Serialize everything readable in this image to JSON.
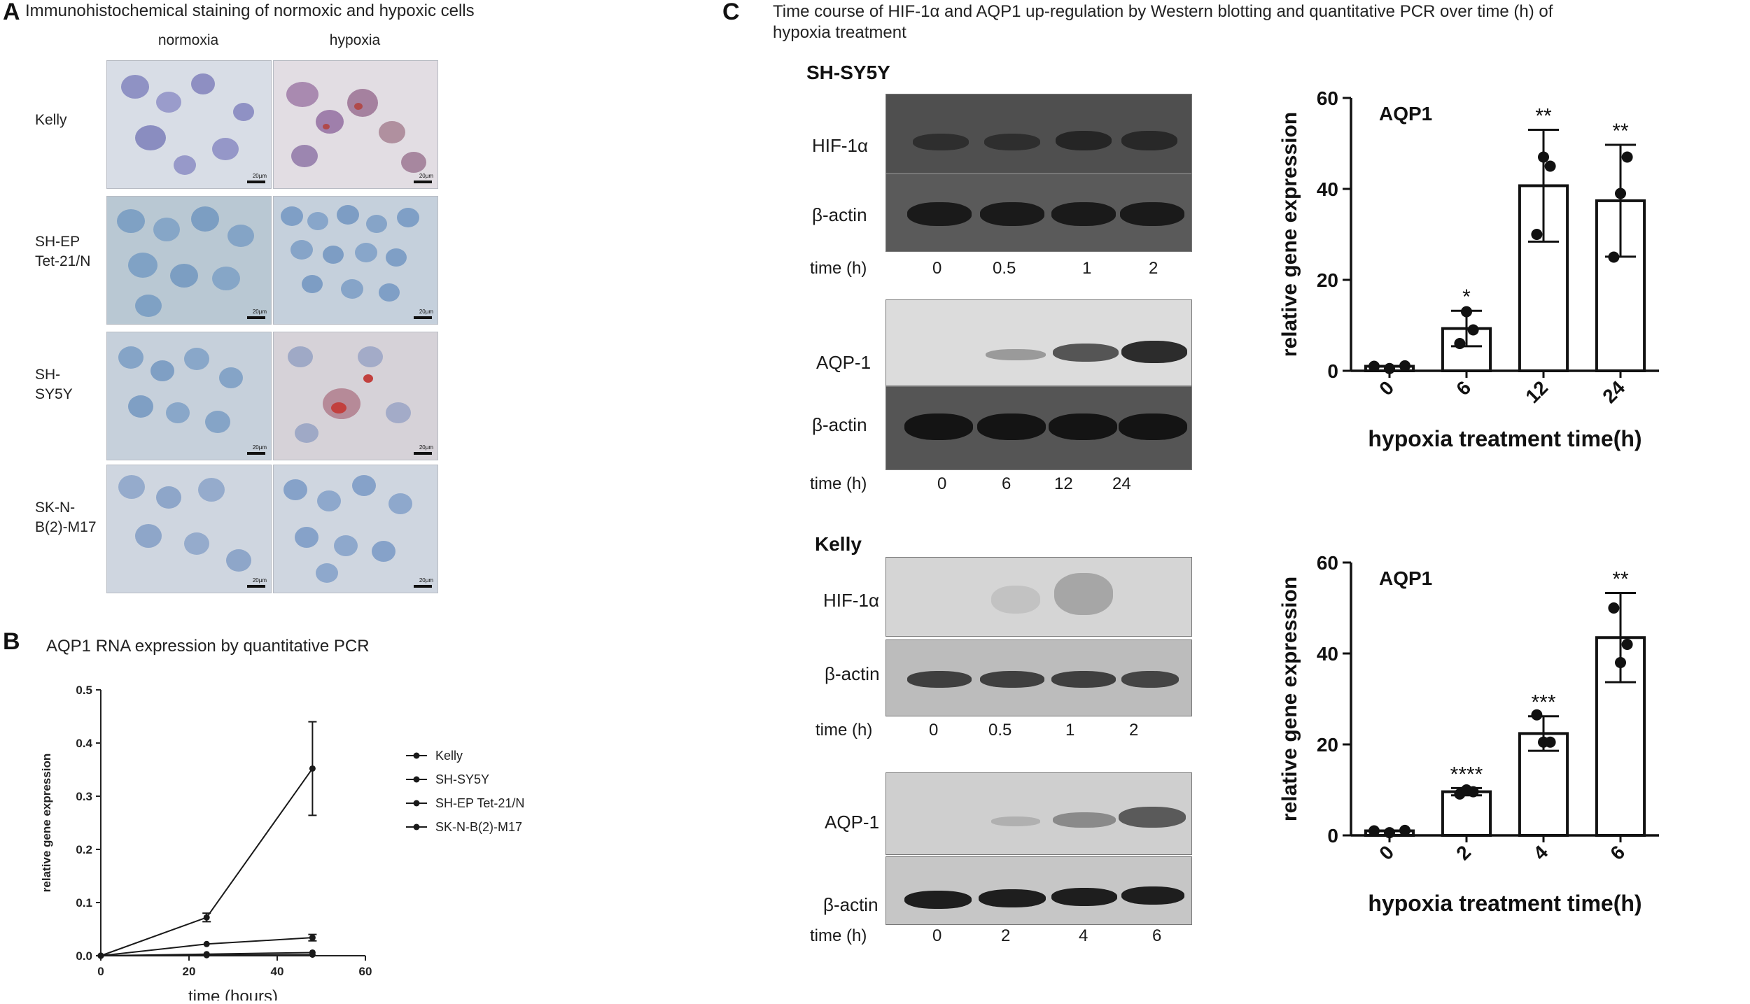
{
  "panelA": {
    "letter": "A",
    "title": "Immunohistochemical staining of normoxic and hypoxic cells",
    "columns": [
      "normoxia",
      "hypoxia"
    ],
    "rows": [
      "Kelly",
      "SH-EP Tet-21/N",
      "SH-SY5Y",
      "SK-N-B(2)-M17"
    ],
    "scale_text": "20µm"
  },
  "panelB": {
    "letter": "B",
    "title": "AQP1 RNA expression by quantitative PCR"
  },
  "panelC": {
    "letter": "C",
    "title": "Time course of HIF-1α and AQP1 up-regulation by Western blotting and quantitative PCR over time (h) of hypoxia treatment",
    "sh_label": "SH-SY5Y",
    "kelly_label": "Kelly",
    "hif_label": "HIF-1α",
    "actin_label": "β-actin",
    "aqp_label": "AQP-1",
    "time_label": "time (h)",
    "sh_hif_times": [
      "0",
      "0.5",
      "1",
      "2"
    ],
    "sh_aqp_times": [
      "0",
      "6",
      "12",
      "24"
    ],
    "kelly_hif_times": [
      "0",
      "0.5",
      "1",
      "2"
    ],
    "kelly_aqp_times": [
      "0",
      "2",
      "4",
      "6"
    ]
  },
  "chart_data": [
    {
      "type": "line",
      "xlabel": "time (hours)",
      "ylabel": "relative gene expression",
      "xlim": [
        0,
        60
      ],
      "ylim": [
        0,
        0.5
      ],
      "xticks": [
        "0",
        "20",
        "40",
        "60"
      ],
      "yticks": [
        "0.0",
        "0.1",
        "0.2",
        "0.3",
        "0.4",
        "0.5"
      ],
      "legend_position": "right",
      "x": [
        0,
        24,
        48
      ],
      "series": [
        {
          "name": "Kelly",
          "values": [
            0,
            0.072,
            0.352
          ],
          "err": [
            0,
            0.008,
            0.088
          ]
        },
        {
          "name": "SH-SY5Y",
          "values": [
            0,
            0.022,
            0.034
          ],
          "err": [
            0,
            0.002,
            0.006
          ]
        },
        {
          "name": "SH-EP Tet-21/N",
          "values": [
            0,
            0.003,
            0.006
          ],
          "err": [
            0,
            0.001,
            0.002
          ]
        },
        {
          "name": "SK-N-B(2)-M17",
          "values": [
            0,
            0.001,
            0.002
          ],
          "err": [
            0,
            0.001,
            0.001
          ]
        }
      ]
    },
    {
      "type": "bar",
      "title": "AQP1",
      "xlabel": "hypoxia treatment time(h)",
      "ylabel": "relative gene expression",
      "ylim": [
        0,
        60
      ],
      "yticks": [
        "0",
        "20",
        "40",
        "60"
      ],
      "categories": [
        "0",
        "6",
        "12",
        "24"
      ],
      "values": [
        1,
        9.3,
        40.7,
        37.4
      ],
      "err": [
        0.2,
        3.9,
        12.3,
        12.3
      ],
      "points": [
        [
          1,
          0.5,
          1.1
        ],
        [
          6,
          13,
          9
        ],
        [
          30,
          47,
          45
        ],
        [
          25,
          39,
          47
        ]
      ],
      "annotations": [
        "",
        "*",
        "**",
        "**"
      ]
    },
    {
      "type": "bar",
      "title": "AQP1",
      "xlabel": "hypoxia treatment time(h)",
      "ylabel": "relative gene expression",
      "ylim": [
        0,
        60
      ],
      "yticks": [
        "0",
        "20",
        "40",
        "60"
      ],
      "categories": [
        "0",
        "2",
        "4",
        "6"
      ],
      "values": [
        1,
        9.6,
        22.4,
        43.5
      ],
      "err": [
        0.2,
        0.8,
        3.8,
        9.8
      ],
      "points": [
        [
          1,
          0.6,
          1.1
        ],
        [
          9.1,
          10,
          9.6
        ],
        [
          26.5,
          20.5,
          20.5
        ],
        [
          50,
          38,
          42
        ]
      ],
      "annotations": [
        "",
        "****",
        "***",
        "**"
      ]
    }
  ]
}
